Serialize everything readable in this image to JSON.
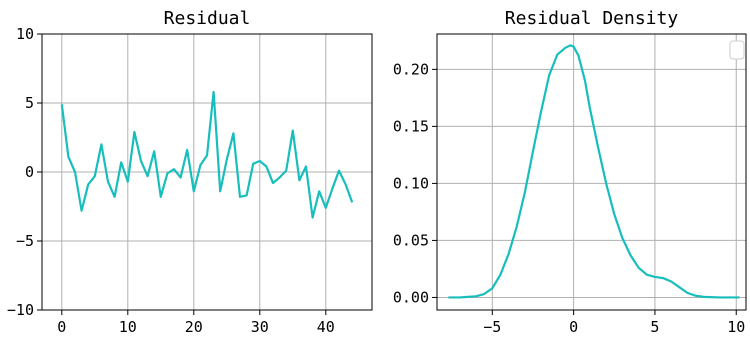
{
  "chart_data": [
    {
      "type": "line",
      "title": "Residual",
      "xlabel": "",
      "ylabel": "",
      "xlim": [
        -3,
        47
      ],
      "ylim": [
        -10,
        10
      ],
      "xticks": [
        0,
        10,
        20,
        30,
        40
      ],
      "yticks": [
        -10,
        -5,
        0,
        5,
        10
      ],
      "xtick_labels": [
        "0",
        "10",
        "20",
        "30",
        "40"
      ],
      "ytick_labels": [
        "−10",
        "−5",
        "0",
        "5",
        "10"
      ],
      "grid": true,
      "color": "#17bebb",
      "series": [
        {
          "x": [
            0,
            1,
            2,
            3,
            4,
            5,
            6,
            7,
            8,
            9,
            10,
            11,
            12,
            13,
            14,
            15,
            16,
            17,
            18,
            19,
            20,
            21,
            22,
            23,
            24,
            25,
            26,
            27,
            28,
            29,
            30,
            31,
            32,
            33,
            34,
            35,
            36,
            37,
            38,
            39,
            40,
            41,
            42,
            43,
            44
          ],
          "values": [
            4.9,
            1.1,
            0.0,
            -2.8,
            -0.9,
            -0.3,
            2.0,
            -0.7,
            -1.8,
            0.7,
            -0.7,
            2.9,
            0.8,
            -0.3,
            1.5,
            -1.8,
            -0.1,
            0.2,
            -0.4,
            1.6,
            -1.4,
            0.5,
            1.2,
            5.8,
            -1.4,
            0.9,
            2.8,
            -1.8,
            -1.7,
            0.6,
            0.8,
            0.4,
            -0.8,
            -0.4,
            0.1,
            3.0,
            -0.6,
            0.4,
            -3.3,
            -1.4,
            -2.6,
            -1.2,
            0.1,
            -0.9,
            -2.2
          ]
        }
      ]
    },
    {
      "type": "line",
      "title": "Residual Density",
      "xlabel": "",
      "ylabel": "",
      "xlim": [
        -8.4,
        10.6
      ],
      "ylim": [
        -0.011,
        0.231
      ],
      "xticks": [
        -5,
        0,
        5,
        10
      ],
      "yticks": [
        0.0,
        0.05,
        0.1,
        0.15,
        0.2
      ],
      "xtick_labels": [
        "−5",
        "0",
        "5",
        "10"
      ],
      "ytick_labels": [
        "0.00",
        "0.05",
        "0.10",
        "0.15",
        "0.20"
      ],
      "grid": true,
      "legend": "top-right",
      "color": "#17bebb",
      "series": [
        {
          "x": [
            -7.7,
            -7.0,
            -6.5,
            -6.0,
            -5.5,
            -5.0,
            -4.5,
            -4.0,
            -3.5,
            -3.0,
            -2.5,
            -2.0,
            -1.5,
            -1.0,
            -0.5,
            -0.2,
            0.0,
            0.3,
            0.7,
            1.0,
            1.5,
            2.0,
            2.5,
            3.0,
            3.5,
            4.0,
            4.5,
            5.0,
            5.5,
            6.0,
            6.5,
            7.0,
            7.5,
            8.0,
            9.0,
            10.2
          ],
          "values": [
            0.0,
            0.0,
            0.0005,
            0.001,
            0.003,
            0.008,
            0.02,
            0.038,
            0.062,
            0.092,
            0.128,
            0.163,
            0.195,
            0.213,
            0.219,
            0.221,
            0.22,
            0.212,
            0.19,
            0.166,
            0.132,
            0.1,
            0.073,
            0.052,
            0.037,
            0.026,
            0.02,
            0.018,
            0.017,
            0.014,
            0.009,
            0.004,
            0.0015,
            0.0005,
            0.0,
            0.0
          ]
        }
      ]
    }
  ]
}
